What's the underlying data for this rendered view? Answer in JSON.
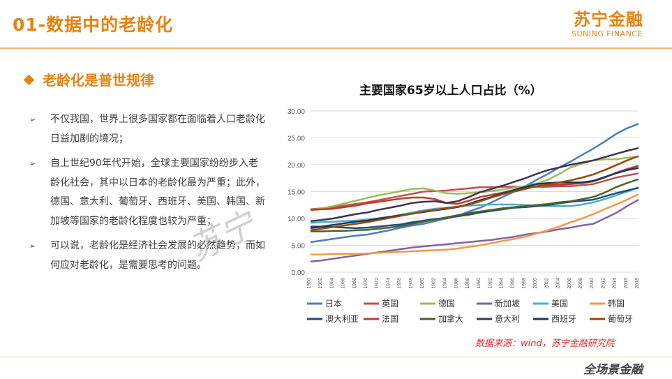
{
  "header": {
    "title": "01-数据中的老龄化",
    "brand_cn": "苏宁金融",
    "brand_en": "SUNING FINANCE"
  },
  "section_title": "老龄化是普世规律",
  "bullets": [
    "不仅我国，世界上很多国家都在面临着人口老龄化日益加剧的境况；",
    "自上世纪90年代开始，全球主要国家纷纷步入老龄化社会，其中以日本的老龄化最为严重；此外，德国、意大利、葡萄牙、西班牙、美国、韩国、新加坡等国家的老龄化程度也较为严重；",
    "可以说，老龄化是经济社会发展的必然趋势，而如何应对老龄化，是需要思考的问题。"
  ],
  "bullet_icon": "arrowhead-icon",
  "source": "数据来源：wind，苏宁金融研究院",
  "footer_mark": "全场景金融",
  "watermark": "苏宁",
  "chart_data": {
    "type": "line",
    "title": "主要国家65岁以上人口占比（%）",
    "xlabel": "",
    "ylabel": "",
    "ylim": [
      0,
      30
    ],
    "ytick_labels": [
      "0.00",
      "5.00",
      "10.00",
      "15.00",
      "20.00",
      "25.00",
      "30.00"
    ],
    "x": [
      1960,
      1962,
      1964,
      1966,
      1968,
      1970,
      1972,
      1974,
      1976,
      1978,
      1980,
      1982,
      1984,
      1986,
      1988,
      1990,
      1992,
      1994,
      1996,
      1998,
      2000,
      2002,
      2004,
      2006,
      2008,
      2010,
      2012,
      2014,
      2016,
      2018
    ],
    "legend_position": "bottom",
    "series": [
      {
        "name": "日本",
        "color": "#4a7ebb",
        "values": [
          5.6,
          5.9,
          6.2,
          6.5,
          6.8,
          7.0,
          7.4,
          7.8,
          8.3,
          8.7,
          9.0,
          9.5,
          10.0,
          10.5,
          11.3,
          12.0,
          13.0,
          14.0,
          15.0,
          16.0,
          17.2,
          18.3,
          19.5,
          20.6,
          21.8,
          23.0,
          24.3,
          25.7,
          26.8,
          27.6
        ]
      },
      {
        "name": "英国",
        "color": "#c0504d",
        "values": [
          11.7,
          11.9,
          12.1,
          12.4,
          12.7,
          13.0,
          13.4,
          13.8,
          14.2,
          14.6,
          15.0,
          15.1,
          15.2,
          15.4,
          15.6,
          15.8,
          15.8,
          15.9,
          15.9,
          15.9,
          15.9,
          15.9,
          16.0,
          16.0,
          16.2,
          16.4,
          17.0,
          17.6,
          18.0,
          18.4
        ]
      },
      {
        "name": "德国",
        "color": "#9bbb59",
        "values": [
          11.5,
          11.9,
          12.3,
          12.8,
          13.3,
          13.8,
          14.3,
          14.7,
          15.1,
          15.5,
          15.6,
          15.2,
          14.7,
          14.6,
          14.7,
          14.9,
          15.1,
          15.4,
          15.7,
          16.0,
          16.5,
          17.2,
          18.3,
          19.5,
          20.2,
          20.8,
          21.0,
          21.0,
          21.3,
          21.5
        ]
      },
      {
        "name": "新加坡",
        "color": "#8064a2",
        "values": [
          2.0,
          2.2,
          2.5,
          2.8,
          3.1,
          3.4,
          3.7,
          4.0,
          4.3,
          4.6,
          4.8,
          5.0,
          5.2,
          5.4,
          5.6,
          5.8,
          6.0,
          6.3,
          6.6,
          7.0,
          7.3,
          7.6,
          8.0,
          8.3,
          8.7,
          9.0,
          10.0,
          11.0,
          12.3,
          13.5
        ]
      },
      {
        "name": "美国",
        "color": "#4bacc6",
        "values": [
          9.2,
          9.3,
          9.4,
          9.5,
          9.6,
          9.8,
          10.0,
          10.3,
          10.7,
          11.1,
          11.5,
          11.8,
          12.0,
          12.2,
          12.4,
          12.5,
          12.6,
          12.6,
          12.6,
          12.5,
          12.4,
          12.3,
          12.3,
          12.3,
          12.6,
          13.0,
          13.6,
          14.3,
          15.0,
          15.8
        ]
      },
      {
        "name": "韩国",
        "color": "#f79646",
        "values": [
          3.3,
          3.3,
          3.4,
          3.4,
          3.4,
          3.5,
          3.6,
          3.7,
          3.8,
          3.9,
          4.0,
          4.1,
          4.2,
          4.4,
          4.7,
          5.0,
          5.4,
          5.8,
          6.2,
          6.6,
          7.2,
          7.8,
          8.5,
          9.3,
          10.0,
          10.8,
          11.7,
          12.6,
          13.5,
          14.5
        ]
      },
      {
        "name": "澳大利亚",
        "color": "#1f4e79",
        "values": [
          8.5,
          8.5,
          8.4,
          8.3,
          8.2,
          8.3,
          8.5,
          8.7,
          8.9,
          9.3,
          9.6,
          9.9,
          10.1,
          10.4,
          10.7,
          11.1,
          11.4,
          11.7,
          12.0,
          12.1,
          12.3,
          12.5,
          12.8,
          13.1,
          13.3,
          13.5,
          14.1,
          14.7,
          15.2,
          15.7
        ]
      },
      {
        "name": "法国",
        "color": "#c0392b",
        "values": [
          11.6,
          11.7,
          11.8,
          12.1,
          12.4,
          12.8,
          13.1,
          13.4,
          13.7,
          13.9,
          13.9,
          13.6,
          12.9,
          12.7,
          13.3,
          14.0,
          14.4,
          14.8,
          15.3,
          15.7,
          16.0,
          16.2,
          16.3,
          16.4,
          16.6,
          16.9,
          17.6,
          18.5,
          19.2,
          19.8
        ]
      },
      {
        "name": "加拿大",
        "color": "#4f6228",
        "values": [
          7.6,
          7.6,
          7.7,
          7.7,
          7.8,
          7.9,
          8.1,
          8.3,
          8.6,
          9.0,
          9.4,
          9.8,
          10.2,
          10.6,
          11.0,
          11.3,
          11.6,
          11.9,
          12.1,
          12.3,
          12.5,
          12.7,
          13.0,
          13.2,
          13.6,
          14.0,
          14.8,
          15.8,
          16.6,
          17.3
        ]
      },
      {
        "name": "意大利",
        "color": "#403151",
        "values": [
          9.5,
          9.7,
          10.0,
          10.4,
          10.8,
          11.1,
          11.6,
          12.0,
          12.4,
          12.9,
          13.1,
          13.2,
          12.9,
          13.2,
          14.0,
          14.9,
          15.5,
          16.1,
          16.8,
          17.5,
          18.3,
          19.0,
          19.5,
          20.0,
          20.4,
          20.8,
          21.4,
          22.0,
          22.6,
          23.1
        ]
      },
      {
        "name": "西班牙",
        "color": "#17375e",
        "values": [
          8.2,
          8.5,
          8.8,
          9.1,
          9.4,
          9.6,
          10.0,
          10.3,
          10.6,
          10.9,
          11.2,
          11.5,
          11.8,
          12.1,
          12.7,
          13.4,
          14.0,
          14.7,
          15.3,
          15.9,
          16.4,
          16.6,
          16.7,
          16.7,
          16.7,
          17.0,
          17.7,
          18.4,
          19.0,
          19.4
        ]
      },
      {
        "name": "葡萄牙",
        "color": "#984807",
        "values": [
          7.8,
          8.1,
          8.4,
          8.7,
          9.0,
          9.3,
          9.7,
          10.1,
          10.5,
          10.9,
          11.3,
          11.6,
          11.9,
          12.2,
          12.6,
          13.2,
          13.9,
          14.5,
          15.0,
          15.5,
          16.0,
          16.3,
          16.7,
          17.1,
          17.6,
          18.2,
          19.0,
          19.9,
          20.8,
          21.6
        ]
      }
    ]
  }
}
